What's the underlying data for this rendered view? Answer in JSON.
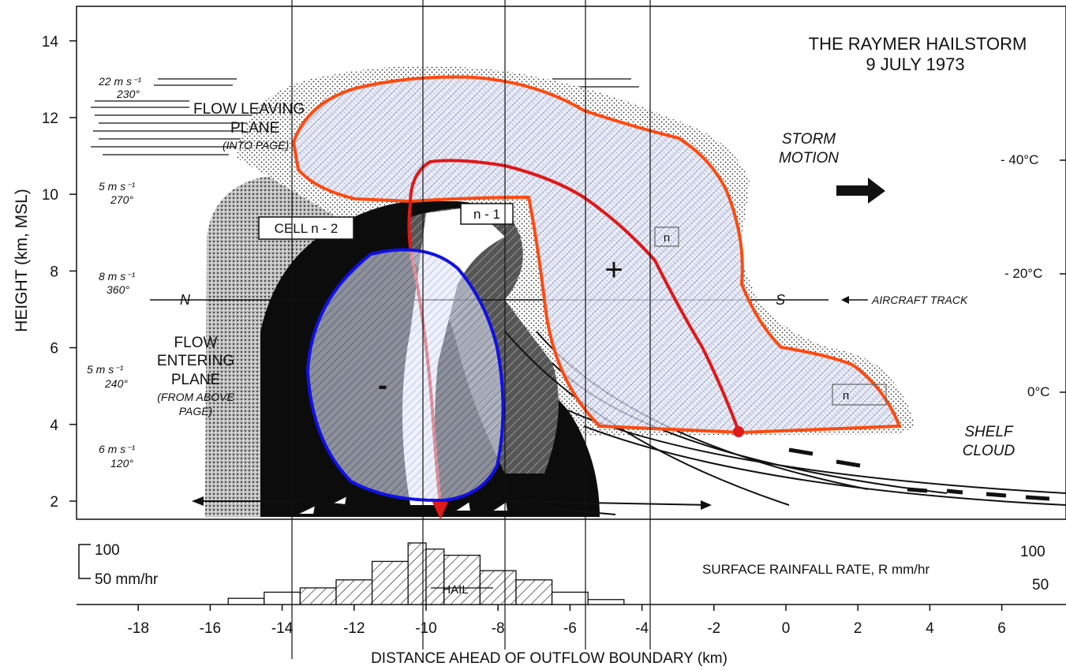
{
  "title": {
    "line1": "THE RAYMER HAILSTORM",
    "line2": "9 JULY 1973"
  },
  "y_axis": {
    "label": "HEIGHT  (km, MSL)",
    "ticks": [
      {
        "label": "2",
        "value": 2
      },
      {
        "label": "4",
        "value": 4
      },
      {
        "label": "6",
        "value": 6
      },
      {
        "label": "8",
        "value": 8
      },
      {
        "label": "10",
        "value": 10
      },
      {
        "label": "12",
        "value": 12
      },
      {
        "label": "14",
        "value": 14
      }
    ]
  },
  "x_axis": {
    "label": "DISTANCE AHEAD OF OUTFLOW BOUNDARY (km)",
    "ticks": [
      {
        "label": "-18",
        "value": -18
      },
      {
        "label": "-16",
        "value": -16
      },
      {
        "label": "-14",
        "value": -14
      },
      {
        "label": "-12",
        "value": -12
      },
      {
        "label": "-10",
        "value": -10
      },
      {
        "label": "-8",
        "value": -8
      },
      {
        "label": "-6",
        "value": -6
      },
      {
        "label": "-4",
        "value": -4
      },
      {
        "label": "-2",
        "value": -2
      },
      {
        "label": "0",
        "value": 0
      },
      {
        "label": "2",
        "value": 2
      },
      {
        "label": "4",
        "value": 4
      },
      {
        "label": "6",
        "value": 6
      }
    ]
  },
  "wind_profile": [
    {
      "speed": "22 m s⁻¹",
      "dir": "230°"
    },
    {
      "speed": "5 m s⁻¹",
      "dir": "270°"
    },
    {
      "speed": "8 m s⁻¹",
      "dir": "360°"
    },
    {
      "speed": "5 m s⁻¹",
      "dir": "240°"
    },
    {
      "speed": "6 m s⁻¹",
      "dir": "120°"
    }
  ],
  "annotations": {
    "flow_leaving": [
      "FLOW LEAVING",
      "PLANE",
      "(INTO PAGE)"
    ],
    "flow_entering": [
      "FLOW",
      "ENTERING",
      "PLANE",
      "(FROM ABOVE",
      "PAGE)"
    ],
    "cell_n2": "CELL n - 2",
    "cell_n1": "n - 1",
    "cell_n": "n",
    "cell_n_plus": "n",
    "storm_motion": [
      "STORM",
      "MOTION"
    ],
    "shelf_cloud": [
      "SHELF",
      "CLOUD"
    ],
    "north": "N",
    "south": "S",
    "aircraft_track": "AIRCRAFT TRACK",
    "plus_sign": "+",
    "minus_sign": "-"
  },
  "temperatures": [
    {
      "label": "- 40°C",
      "height": 10.9
    },
    {
      "label": "- 20°C",
      "height": 8.0
    },
    {
      "label": "0°C",
      "height": 4.9
    }
  ],
  "rainfall": {
    "label": "SURFACE RAINFALL RATE, R mm/hr",
    "left_top": "100",
    "left_mid": "50 mm/hr",
    "right_top": "100",
    "right_mid": "50",
    "hail": "HAIL",
    "histogram": [
      {
        "from": -15.5,
        "to": -14.5,
        "rate": 10
      },
      {
        "from": -14.5,
        "to": -13.5,
        "rate": 20
      },
      {
        "from": -13.5,
        "to": -12.5,
        "rate": 27
      },
      {
        "from": -12.5,
        "to": -11.5,
        "rate": 40
      },
      {
        "from": -11.5,
        "to": -10.5,
        "rate": 70
      },
      {
        "from": -10.5,
        "to": -10.0,
        "rate": 100
      },
      {
        "from": -10.0,
        "to": -9.5,
        "rate": 90
      },
      {
        "from": -9.5,
        "to": -8.5,
        "rate": 80
      },
      {
        "from": -8.5,
        "to": -7.5,
        "rate": 55
      },
      {
        "from": -7.5,
        "to": -6.5,
        "rate": 40
      },
      {
        "from": -6.5,
        "to": -5.5,
        "rate": 20
      },
      {
        "from": -5.5,
        "to": -4.5,
        "rate": 8
      }
    ]
  },
  "colors": {
    "updraft_outline": "#ff4a10",
    "inner_outline": "#e01818",
    "downdraft_outline": "#1010e8",
    "hatch": "#8f9fd6"
  }
}
